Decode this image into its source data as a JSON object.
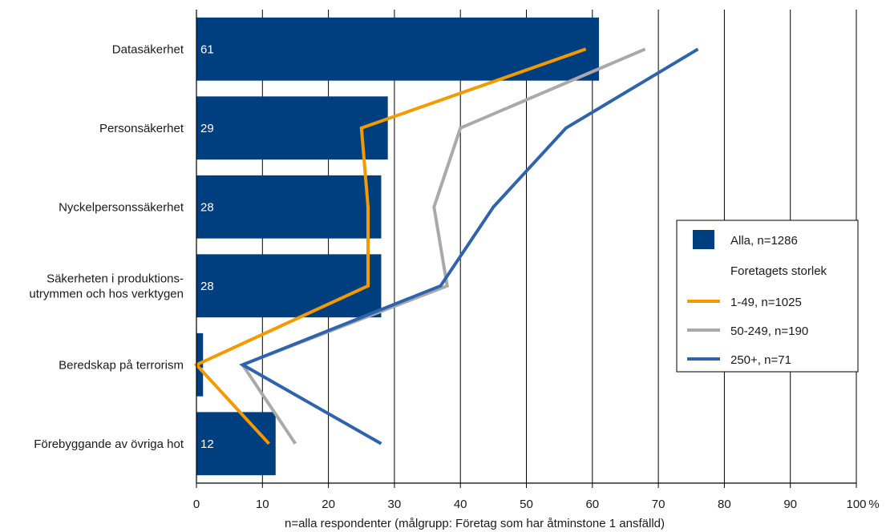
{
  "chart_data": {
    "type": "bar",
    "orientation": "horizontal",
    "categories": [
      [
        "Datasäkerhet"
      ],
      [
        "Personsäkerhet"
      ],
      [
        "Nyckelpersonssäkerhet"
      ],
      [
        "Säkerheten i produktions-",
        "utrymmen och hos verktygen"
      ],
      [
        "Beredskap på terrorism"
      ],
      [
        "Förebyggande av övriga hot"
      ]
    ],
    "bar_series": {
      "name": "Alla, n=1286",
      "color": "#003F7F",
      "values": [
        61,
        29,
        28,
        28,
        1,
        12
      ],
      "value_labels": [
        "61",
        "29",
        "28",
        "28",
        "1",
        "12"
      ]
    },
    "line_series": [
      {
        "name": "1-49, n=1025",
        "color": "#F39A00",
        "values": [
          59,
          25,
          26,
          26,
          0,
          11
        ]
      },
      {
        "name": "50-249, n=190",
        "color": "#A9A9A9",
        "values": [
          68,
          40,
          36,
          38,
          7,
          15
        ]
      },
      {
        "name": "250+, n=71",
        "color": "#2F64AC",
        "values": [
          76,
          56,
          45,
          37,
          7,
          28
        ]
      }
    ],
    "x_ticks": [
      "0",
      "10",
      "20",
      "30",
      "40",
      "50",
      "60",
      "70",
      "80",
      "90",
      "100"
    ],
    "x_unit": "%",
    "xlim": [
      0,
      100
    ],
    "grid": "vertical",
    "legend": {
      "placement": "right",
      "bar_label": "Alla, n=1286",
      "group_title": "Foretagets storlek"
    },
    "footnote": "n=alla respondenter (målgrupp: Företag som har åtminstone 1 ansfälld)"
  }
}
